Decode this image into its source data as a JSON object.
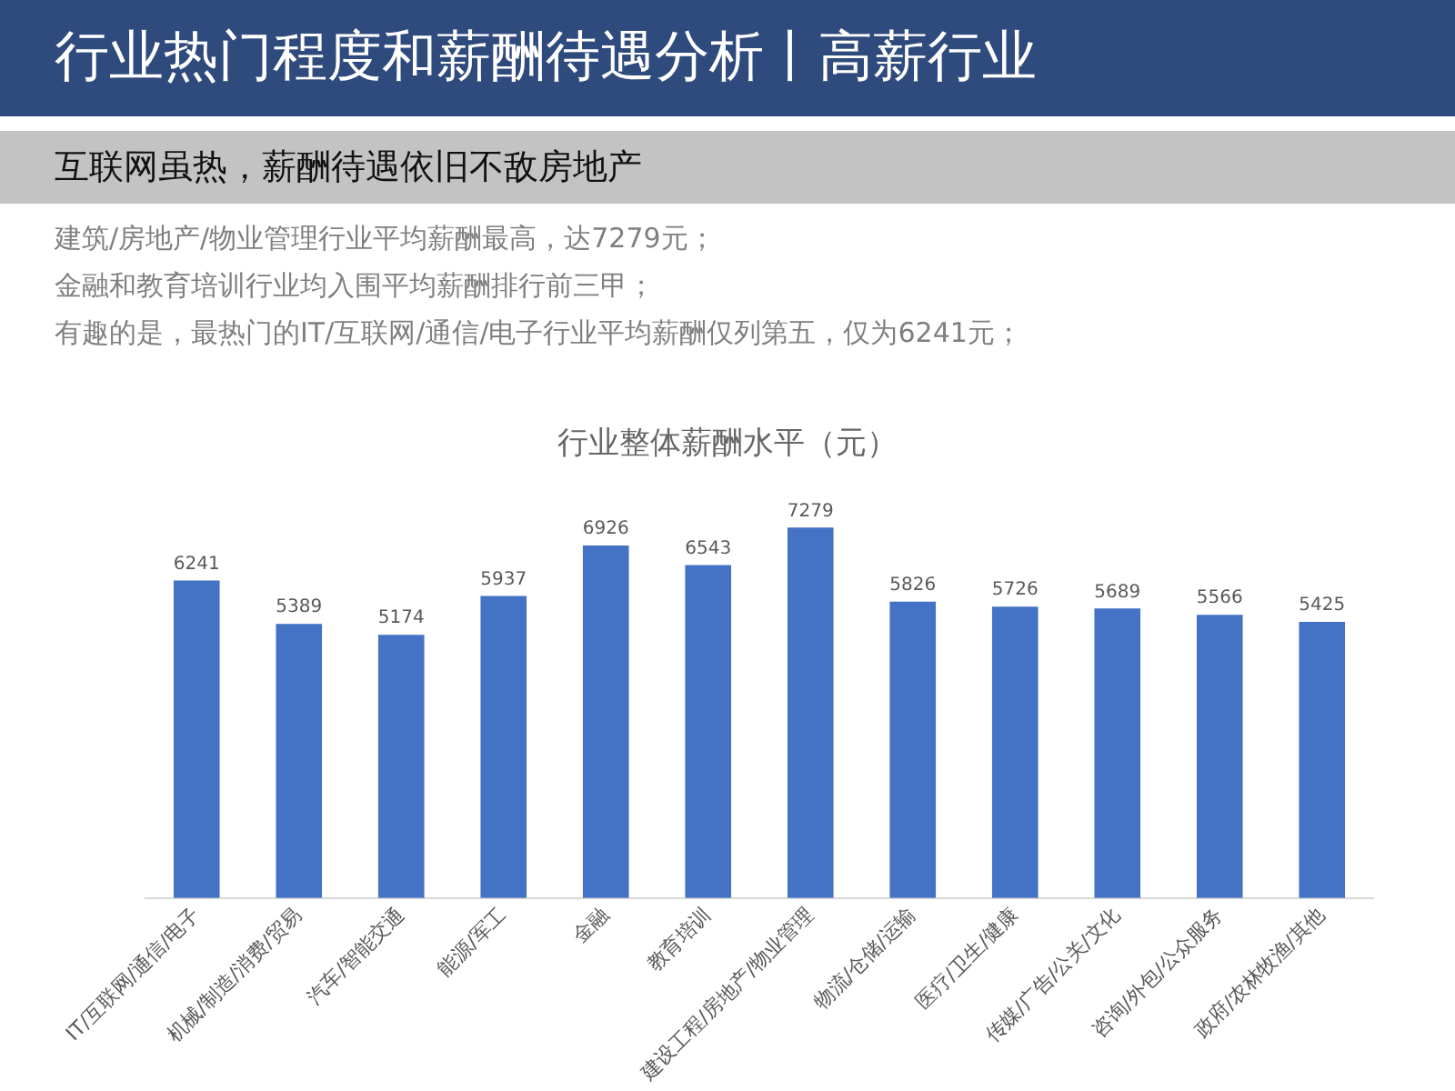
{
  "chart_data": {
    "type": "bar",
    "title": "行业热门程度和薪酬待遇分析丨高薪行业",
    "subtitle": "互联网虽热，薪酬待遇依旧不敌房地产",
    "annotations": [
      "建筑/房地产/物业管理行业平均薪酬最高，达7279元；",
      "金融和教育培训行业均入围平均薪酬排行前三甲；",
      "有趣的是，最热门的IT/互联网/通信/电子行业平均薪酬仅列第五，仅为6241元；",
      "行业整体薪酬水平（元）"
    ],
    "categories": [
      "IT/互联网/通信/电子",
      "机械/制造/消费/贸易",
      "汽车/智能交通",
      "能源/军工",
      "金融",
      "教育培训",
      "建设工程/房地产/物业管理",
      "物流/仓储/运输",
      "医疗/卫生/健康",
      "传媒/广告/公关/文化",
      "咨询/外包/公众服务",
      "政府/农林牧渔/其他"
    ],
    "values": [
      6241,
      5389,
      5174,
      5937,
      6926,
      6543,
      7279,
      5826,
      5726,
      5689,
      5566,
      5425
    ],
    "color": "#4472c4",
    "data_labels": true,
    "grid": false,
    "legend": false,
    "tick_labels": "x"
  }
}
